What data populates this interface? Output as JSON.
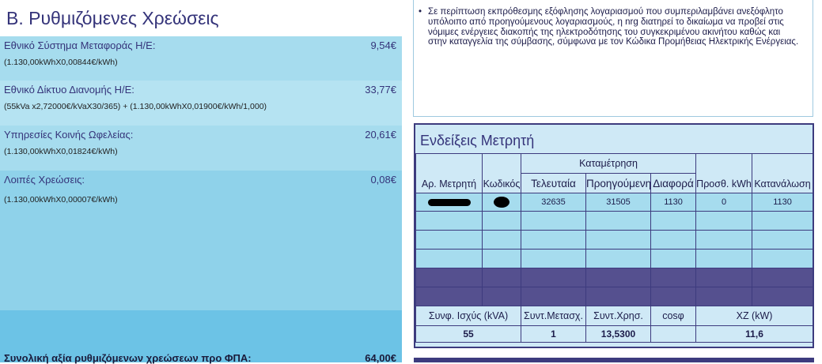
{
  "section_b": {
    "title": "Β. Ρυθμιζόμενες Χρεώσεις",
    "charges": [
      {
        "label": "Εθνικό Σύστημα Μεταφοράς Η/Ε:",
        "amount": "9,54€",
        "formula": "(1.130,00kWhX0,00844€/kWh)"
      },
      {
        "label": "Εθνικό Δίκτυο Διανομής Η/Ε:",
        "amount": "33,77€",
        "formula": "(55kVa x2,72000€/kVaX30/365) + (1.130,00kWhX0,01900€/kWh/1,000)"
      },
      {
        "label": "Υπηρεσίες Κοινής Ωφελείας:",
        "amount": "20,61€",
        "formula": "(1.130,00kWhX0,01824€/kWh)"
      },
      {
        "label": "Λοιπές Χρεώσεις:",
        "amount": "0,08€",
        "formula": "(1.130,00kWhX0,00007€/kWh)"
      }
    ],
    "total_label": "Συνολική αξία ρυθμιζόμενων χρεώσεων προ ΦΠΑ:",
    "total_amount": "64,00€"
  },
  "note": {
    "bullet": "•",
    "text": "Σε περίπτωση εκπρόθεσμης εξόφλησης λογαριασμού που συμπεριλαμβάνει ανεξόφλητο υπόλοιπο από προηγούμενους λογαριασμούς, η nrg διατηρεί το δικαίωμα να προβεί στις νόμιμες ενέργειες διακοπής της ηλεκτροδότησης του συγκεκριμένου ακινήτου καθώς και στην καταγγελία της σύμβασης, σύμφωνα με τον Κώδικα Προμήθειας Ηλεκτρικής Ενέργειας."
  },
  "meter": {
    "title": "Ενδείξεις Μετρητή",
    "group_header": "Καταμέτρηση",
    "headers": {
      "meter_no": "Αρ. Μετρητή",
      "code": "Κωδικός",
      "last": "Τελευταία",
      "previous": "Προηγούμενη",
      "difference": "Διαφορά",
      "added_kwh": "Προσθ. kWh",
      "consumption": "Κατανάλωση"
    },
    "row": {
      "last": "32635",
      "previous": "31505",
      "difference": "1130",
      "added_kwh": "0",
      "consumption": "1130"
    },
    "footer_headers": {
      "power": "Συνφ. Ισχύς (kVA)",
      "transformer": "Συντ.Μετασχ.",
      "usage": "Συντ.Χρησ.",
      "cos": "cosφ",
      "xz": "ΧΖ (kW)"
    },
    "footer_values": {
      "power": "55",
      "transformer": "1",
      "usage": "13,5300",
      "cos": "",
      "xz": "11,6"
    }
  },
  "colors": {
    "panel": "#a6dcee",
    "dark_row": "#55508f",
    "border": "#3d3b7e",
    "title": "#35347a"
  }
}
